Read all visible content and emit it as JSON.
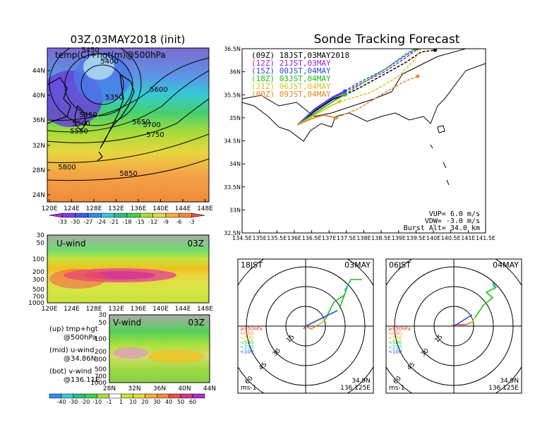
{
  "map_panel": {
    "title": "03Z,03MAY2018 (init)",
    "subtitle": "temp(C)+hgt(m)@500hPa",
    "lat_ticks": [
      "44N",
      "40N",
      "36N",
      "32N",
      "28N",
      "24N"
    ],
    "lon_ticks": [
      "120E",
      "124E",
      "128E",
      "132E",
      "136E",
      "140E",
      "144E",
      "148E"
    ],
    "contour_labels": [
      "5450",
      "5400",
      "5350",
      "5600",
      "5450",
      "5500",
      "5550",
      "5650",
      "5700",
      "5750",
      "5800",
      "5850"
    ],
    "temp_colorbar": [
      "-33",
      "-30",
      "-27",
      "-24",
      "-21",
      "-18",
      "-15",
      "-12",
      "-9",
      "-6",
      "-3"
    ]
  },
  "uwind_panel": {
    "label": "U-wind",
    "time": "03Z",
    "p_ticks": [
      "30",
      "50",
      "100",
      "200",
      "300",
      "500",
      "700",
      "1000"
    ],
    "lon_ticks": [
      "120E",
      "124E",
      "128E",
      "132E",
      "136E",
      "140E",
      "144E",
      "148E"
    ]
  },
  "vwind_panel": {
    "label": "V-wind",
    "time": "03Z",
    "p_ticks": [
      "30",
      "50",
      "100",
      "200",
      "300",
      "500",
      "700",
      "1000"
    ],
    "lat_ticks": [
      "28N",
      "32N",
      "36N",
      "40N",
      "44N"
    ],
    "wind_colorbar": [
      "-40",
      "-30",
      "-20",
      "-10",
      "-1",
      "1",
      "10",
      "20",
      "30",
      "40",
      "50",
      "60"
    ]
  },
  "legend_notes": [
    {
      "a": "(up) tmp+hgt",
      "b": "@500hPa"
    },
    {
      "a": "(mid) u-wind",
      "b": "@34.86N"
    },
    {
      "a": "(bot) v-wind",
      "b": "@136.11E"
    }
  ],
  "track_panel": {
    "title": "Sonde Tracking Forecast",
    "lat_ticks": [
      "36.5N",
      "36N",
      "35.5N",
      "35N",
      "34.5N",
      "34N",
      "33.5N",
      "33N",
      "32.5N"
    ],
    "lon_ticks": [
      "134.5E",
      "135E",
      "135.5E",
      "136E",
      "136.5E",
      "137E",
      "137.5E",
      "138E",
      "138.5E",
      "139E",
      "139.5E",
      "140E",
      "140.5E",
      "141E",
      "141.5E"
    ],
    "launches": [
      {
        "label": "(09Z)  18JST,03MAY2018",
        "color": "#000000"
      },
      {
        "label": "(12Z)  21JST,03MAY",
        "color": "#9b1fd6"
      },
      {
        "label": "(15Z)  00JST,04MAY",
        "color": "#2a4bde"
      },
      {
        "label": "(18Z)  03JST,04MAY",
        "color": "#1fbf1f"
      },
      {
        "label": "(21Z)  06JST,04MAY",
        "color": "#d8c21a"
      },
      {
        "label": "(00Z)  09JST,04MAY",
        "color": "#e9832a"
      }
    ],
    "params": {
      "vup": "VUP=  6.0 m/s",
      "vdw": "VDW= -3.0 m/s",
      "burst": "Burst Alt= 34.0 km"
    }
  },
  "hodo_left": {
    "time": "18JST",
    "date": "03MAY",
    "lat": "34.9N",
    "lon": "136.125E",
    "unit": "ms-1"
  },
  "hodo_right": {
    "time": "06JST",
    "date": "04MAY",
    "lat": "34.9N",
    "lon": "136.125E",
    "unit": "ms-1"
  },
  "hodo_ring_labels": [
    "15",
    "30",
    "45",
    "60"
  ],
  "hodo_levels": [
    {
      "label": "≥850hPa",
      "color": "#e03a2a"
    },
    {
      "label": "<850",
      "color": "#e9832a"
    },
    {
      "label": "<700",
      "color": "#d8c21a"
    },
    {
      "label": "<500",
      "color": "#1fbf1f"
    },
    {
      "label": "<250",
      "color": "#19c4c4"
    },
    {
      "label": "<100",
      "color": "#2a4bde"
    }
  ],
  "chart_data": {
    "type": "line",
    "title": "Sonde Tracking Forecast",
    "xlim": [
      134.5,
      141.5
    ],
    "ylim": [
      32.5,
      36.5
    ],
    "series": [
      {
        "name": "(09Z)  18JST,03MAY2018",
        "points": [
          [
            136.1,
            34.85
          ],
          [
            136.6,
            35.15
          ],
          [
            137.1,
            35.4
          ],
          [
            137.45,
            35.5
          ],
          [
            137.75,
            35.6
          ],
          [
            138.6,
            35.95
          ],
          [
            139.2,
            36.2
          ],
          [
            139.65,
            36.43
          ],
          [
            140.05,
            36.47
          ]
        ]
      },
      {
        "name": "(12Z)  21JST,03MAY",
        "points": [
          [
            136.1,
            34.85
          ],
          [
            136.6,
            35.18
          ],
          [
            137.1,
            35.43
          ],
          [
            137.45,
            35.55
          ],
          [
            137.75,
            35.68
          ],
          [
            138.6,
            36.0
          ],
          [
            139.2,
            36.3
          ],
          [
            139.55,
            36.5
          ]
        ]
      },
      {
        "name": "(15Z)  00JST,04MAY",
        "points": [
          [
            136.1,
            34.85
          ],
          [
            136.6,
            35.2
          ],
          [
            137.1,
            35.45
          ],
          [
            137.45,
            35.58
          ],
          [
            137.75,
            35.72
          ],
          [
            138.6,
            36.05
          ],
          [
            139.2,
            36.35
          ],
          [
            139.5,
            36.5
          ]
        ]
      },
      {
        "name": "(18Z)  03JST,04MAY",
        "points": [
          [
            136.1,
            34.85
          ],
          [
            136.6,
            35.1
          ],
          [
            137.1,
            35.35
          ],
          [
            137.45,
            35.5
          ],
          [
            137.75,
            35.65
          ],
          [
            138.6,
            36.05
          ],
          [
            139.2,
            36.38
          ],
          [
            139.45,
            36.5
          ]
        ]
      },
      {
        "name": "(21Z)  06JST,04MAY",
        "points": [
          [
            136.1,
            34.85
          ],
          [
            136.5,
            35.02
          ],
          [
            136.9,
            35.2
          ],
          [
            137.3,
            35.35
          ],
          [
            138.2,
            35.55
          ],
          [
            139.0,
            35.9
          ],
          [
            139.45,
            36.25
          ],
          [
            139.6,
            36.5
          ]
        ]
      },
      {
        "name": "(00Z)  09JST,04MAY",
        "points": [
          [
            136.1,
            34.85
          ],
          [
            136.5,
            34.98
          ],
          [
            136.85,
            35.06
          ],
          [
            137.2,
            35.0
          ],
          [
            137.85,
            35.2
          ],
          [
            138.5,
            35.5
          ],
          [
            139.2,
            35.8
          ],
          [
            139.55,
            35.9
          ]
        ]
      }
    ]
  }
}
